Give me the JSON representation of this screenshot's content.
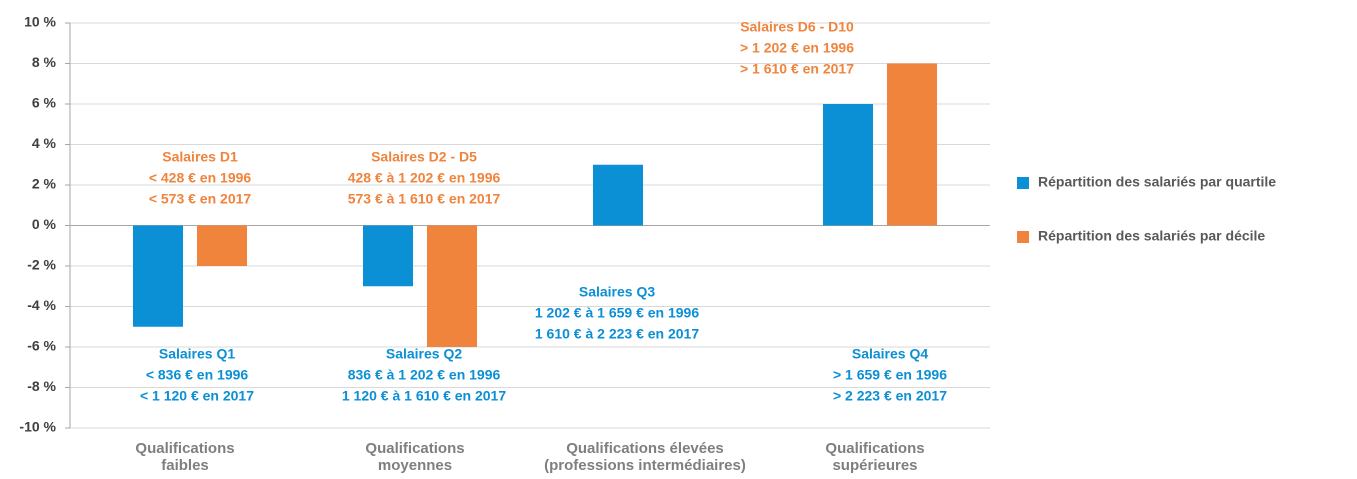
{
  "chart_data": {
    "type": "bar",
    "categories": [
      "Qualifications\nfaibles",
      "Qualifications\nmoyennes",
      "Qualifications élevées\n(professions intermédiaires)",
      "Qualifications\nsupérieures"
    ],
    "series": [
      {
        "name": "Répartition des salariés par quartile",
        "color": "#0b8fd5",
        "values": [
          -5,
          -3,
          3,
          6
        ],
        "annotations": [
          [
            "Salaires Q1",
            "< 836 € en 1996",
            "< 1 120 € en 2017"
          ],
          [
            "Salaires Q2",
            "836 € à 1 202 € en 1996",
            "1 120 € à 1 610 € en 2017"
          ],
          [
            "Salaires Q3",
            "1 202 € à 1 659 € en 1996",
            "1 610 € à 2 223 € en 2017"
          ],
          [
            "Salaires  Q4",
            "> 1 659 € en 1996",
            "> 2 223 € en 2017"
          ]
        ]
      },
      {
        "name": "Répartition des salariés par décile",
        "color": "#f0843c",
        "values": [
          -2,
          -6,
          null,
          8
        ],
        "annotations": [
          [
            "Salaires D1",
            "< 428 € en 1996",
            "< 573 € en 2017"
          ],
          [
            "Salaires D2 - D5",
            "428 € à 1 202 € en 1996",
            "573 € à 1 610 € en 2017"
          ],
          null,
          [
            "Salaires D6 - D10",
            "> 1 202 € en 1996",
            "> 1 610 € en 2017"
          ]
        ]
      }
    ],
    "ylim": [
      -10,
      10
    ],
    "yticks": [
      {
        "value": -10,
        "label": "-10 %"
      },
      {
        "value": -8,
        "label": "-8 %"
      },
      {
        "value": -6,
        "label": "-6 %"
      },
      {
        "value": -4,
        "label": "-4 %"
      },
      {
        "value": -2,
        "label": "-2 %"
      },
      {
        "value": 0,
        "label": "0 %"
      },
      {
        "value": 2,
        "label": "2 %"
      },
      {
        "value": 4,
        "label": "4 %"
      },
      {
        "value": 6,
        "label": "6 %"
      },
      {
        "value": 8,
        "label": "8 %"
      },
      {
        "value": 10,
        "label": "10 %"
      }
    ],
    "grid": true,
    "legend": "right"
  }
}
